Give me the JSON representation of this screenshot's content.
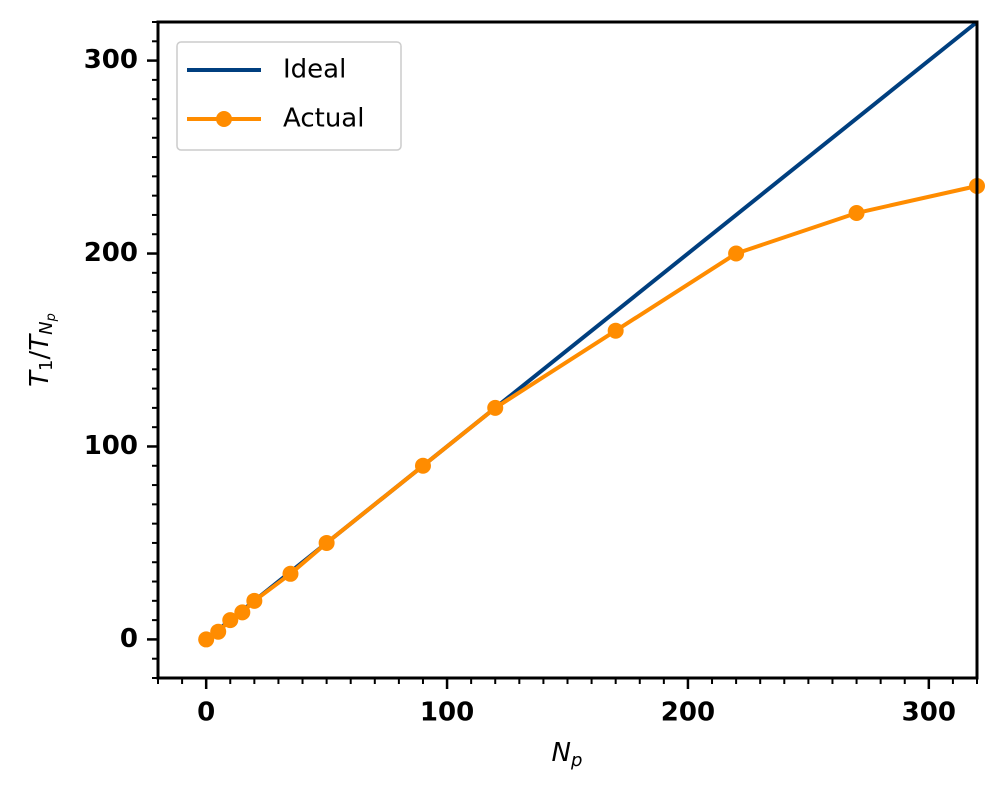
{
  "chart_data": {
    "type": "line",
    "xlabel": [
      "N",
      "p"
    ],
    "ylabel": [
      "T",
      "1",
      "/",
      "T",
      "N",
      "p"
    ],
    "series": [
      {
        "name": "Ideal",
        "color": "#003f7f",
        "x": [
          0,
          320
        ],
        "values": [
          0,
          320
        ]
      },
      {
        "name": "Actual",
        "color": "#ff8c00",
        "marker": "circle",
        "x": [
          0,
          5,
          10,
          15,
          20,
          35,
          50,
          90,
          120,
          170,
          220,
          270,
          320
        ],
        "values": [
          0,
          4,
          10,
          14,
          20,
          34,
          50,
          90,
          120,
          160,
          200,
          221,
          235
        ]
      }
    ],
    "xlim": [
      -20,
      320
    ],
    "ylim": [
      -20,
      320
    ],
    "xticks": [
      0,
      100,
      200,
      300
    ],
    "yticks": [
      0,
      100,
      200,
      300
    ],
    "xminorticks": [
      -20,
      -10,
      10,
      20,
      30,
      40,
      50,
      60,
      70,
      80,
      90,
      110,
      120,
      130,
      140,
      150,
      160,
      170,
      180,
      190,
      210,
      220,
      230,
      240,
      250,
      260,
      270,
      280,
      290,
      310,
      320
    ],
    "yminorticks": [
      -20,
      -10,
      10,
      20,
      30,
      40,
      50,
      60,
      70,
      80,
      90,
      110,
      120,
      130,
      140,
      150,
      160,
      170,
      180,
      190,
      210,
      220,
      230,
      240,
      250,
      260,
      270,
      280,
      290,
      310,
      320
    ],
    "grid": false,
    "legend": "upper left"
  }
}
